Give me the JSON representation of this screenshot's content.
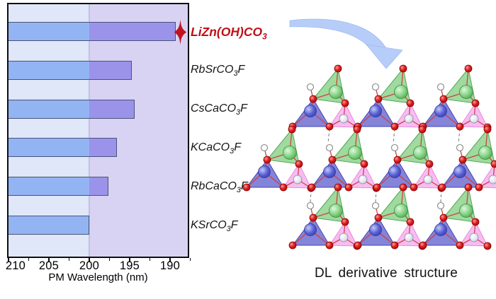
{
  "chart_data": {
    "type": "bar",
    "orientation": "horizontal",
    "title": "",
    "xlabel": "PM Wavelength (nm)",
    "axis_reversed": true,
    "x_range": [
      210,
      187.8
    ],
    "x_major_ticks": [
      210,
      205,
      200,
      195,
      190
    ],
    "x_minor_ticks": [
      207.5,
      202.5,
      197.5,
      192.5,
      187.5
    ],
    "region_boundary": 200,
    "grid": false,
    "bars": [
      {
        "compound": "LiZn(OH)CO3",
        "formula_pre": "LiZn(OH)CO",
        "formula_sub": "3",
        "formula_suf": "",
        "pm_wavelength_nm": 189.3,
        "highlighted": true,
        "marker": "four-pointed-star"
      },
      {
        "compound": "RbSrCO3F",
        "formula_pre": "RbSrCO",
        "formula_sub": "3",
        "formula_suf": "F",
        "pm_wavelength_nm": 194.7,
        "highlighted": false
      },
      {
        "compound": "CsCaCO3F",
        "formula_pre": "CsCaCO",
        "formula_sub": "3",
        "formula_suf": "F",
        "pm_wavelength_nm": 194.4,
        "highlighted": false
      },
      {
        "compound": "KCaCO3F",
        "formula_pre": "KCaCO",
        "formula_sub": "3",
        "formula_suf": "F",
        "pm_wavelength_nm": 196.6,
        "highlighted": false
      },
      {
        "compound": "RbCaCO3F",
        "formula_pre": "RbCaCO",
        "formula_sub": "3",
        "formula_suf": "F",
        "pm_wavelength_nm": 197.6,
        "highlighted": false
      },
      {
        "compound": "KSrCO3F",
        "formula_pre": "KSrCO",
        "formula_sub": "3",
        "formula_suf": "F",
        "pm_wavelength_nm": 200.0,
        "highlighted": false
      }
    ],
    "colors": {
      "bar_left_segment": "#93b4f3",
      "bar_right_segment": "#9b93ea",
      "region_left_bg": "#dfe7f8",
      "region_right_bg": "#d8d3f3",
      "bar_border": "#49527a",
      "highlight_text": "#c01018",
      "star_marker": "#bf1420"
    }
  },
  "structure": {
    "caption": "DL derivative structure",
    "arrow_meaning": "points from LiZn(OH)CO3 label to its crystal structure",
    "arrow_color": "#b7cdf9",
    "polyhedra_colors": {
      "green_triangle": "#8ed48e",
      "blue_triangle": "#6f6fd2",
      "pink_triangle": "#f7b0ee"
    },
    "atom_colors": {
      "oxygen_red": "#e02020",
      "hydrogen_white": "#f4f4f8",
      "green_cation": "#8ede8e",
      "blue_cation": "#5a63d8"
    },
    "bond_colors": {
      "covalent_bond": "#d04040",
      "hydrogen_bond_dashed": "#909090"
    }
  }
}
